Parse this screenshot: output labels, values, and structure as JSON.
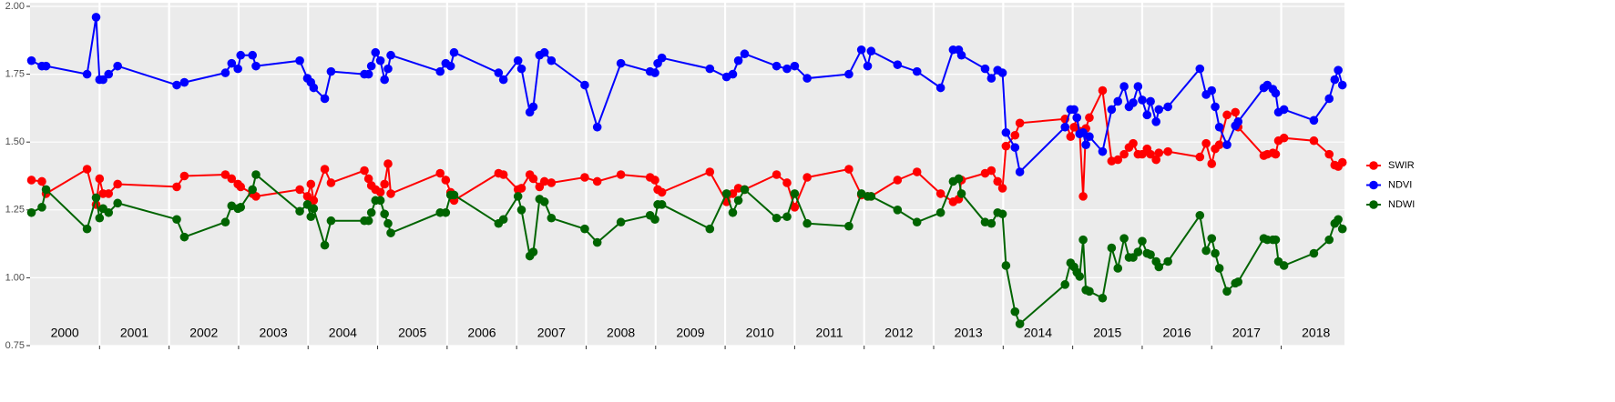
{
  "chart_data": {
    "type": "line",
    "x": [
      2000.02,
      2000.17,
      2000.23,
      2000.82,
      2000.95,
      2001.0,
      2001.05,
      2001.13,
      2001.26,
      2002.11,
      2002.22,
      2002.81,
      2002.9,
      2002.99,
      2003.03,
      2003.2,
      2003.25,
      2003.88,
      2003.99,
      2004.04,
      2004.08,
      2004.24,
      2004.33,
      2004.81,
      2004.87,
      2004.91,
      2004.97,
      2005.04,
      2005.1,
      2005.15,
      2005.19,
      2005.9,
      2005.98,
      2006.05,
      2006.1,
      2006.74,
      2006.81,
      2007.02,
      2007.07,
      2007.19,
      2007.24,
      2007.33,
      2007.4,
      2007.5,
      2007.98,
      2008.16,
      2008.5,
      2008.92,
      2008.99,
      2009.03,
      2009.09,
      2009.78,
      2010.02,
      2010.11,
      2010.19,
      2010.28,
      2010.74,
      2010.89,
      2011.0,
      2011.18,
      2011.78,
      2011.96,
      2012.05,
      2012.1,
      2012.48,
      2012.76,
      2013.1,
      2013.28,
      2013.36,
      2013.4,
      2013.74,
      2013.83,
      2013.92,
      2013.99,
      2014.04,
      2014.17,
      2014.24,
      2014.89,
      2014.97,
      2015.02,
      2015.06,
      2015.1,
      2015.15,
      2015.19,
      2015.24,
      2015.43,
      2015.56,
      2015.65,
      2015.74,
      2015.81,
      2015.87,
      2015.94,
      2016.0,
      2016.07,
      2016.12,
      2016.2,
      2016.24,
      2016.37,
      2016.83,
      2016.92,
      2017.0,
      2017.05,
      2017.11,
      2017.22,
      2017.34,
      2017.38,
      2017.75,
      2017.8,
      2017.88,
      2017.92,
      2017.96,
      2018.04,
      2018.47,
      2018.69,
      2018.77,
      2018.82,
      2018.88
    ],
    "series": [
      {
        "name": "SWIR",
        "color": "#ff0000",
        "values": [
          1.36,
          1.355,
          1.31,
          1.4,
          1.27,
          1.365,
          1.31,
          1.31,
          1.345,
          1.335,
          1.375,
          1.38,
          1.365,
          1.345,
          1.335,
          1.31,
          1.3,
          1.325,
          1.3,
          1.345,
          1.285,
          1.4,
          1.35,
          1.395,
          1.365,
          1.34,
          1.325,
          1.315,
          1.345,
          1.42,
          1.31,
          1.385,
          1.36,
          1.315,
          1.285,
          1.385,
          1.38,
          1.325,
          1.33,
          1.38,
          1.365,
          1.335,
          1.355,
          1.35,
          1.37,
          1.355,
          1.38,
          1.37,
          1.36,
          1.325,
          1.315,
          1.39,
          1.28,
          1.31,
          1.33,
          1.325,
          1.38,
          1.35,
          1.26,
          1.37,
          1.4,
          1.305,
          1.3,
          1.3,
          1.36,
          1.39,
          1.31,
          1.28,
          1.29,
          1.36,
          1.385,
          1.395,
          1.355,
          1.33,
          1.485,
          1.525,
          1.57,
          1.585,
          1.52,
          1.555,
          1.59,
          1.54,
          1.3,
          1.55,
          1.59,
          1.69,
          1.43,
          1.435,
          1.455,
          1.48,
          1.495,
          1.455,
          1.455,
          1.475,
          1.455,
          1.435,
          1.46,
          1.465,
          1.445,
          1.495,
          1.42,
          1.475,
          1.49,
          1.6,
          1.61,
          1.555,
          1.45,
          1.455,
          1.46,
          1.455,
          1.505,
          1.515,
          1.505,
          1.455,
          1.415,
          1.41,
          1.425
        ]
      },
      {
        "name": "NDVI",
        "color": "#0000ff",
        "values": [
          1.8,
          1.78,
          1.78,
          1.75,
          1.96,
          1.73,
          1.73,
          1.75,
          1.78,
          1.71,
          1.72,
          1.755,
          1.79,
          1.77,
          1.82,
          1.82,
          1.78,
          1.8,
          1.735,
          1.72,
          1.7,
          1.66,
          1.76,
          1.75,
          1.75,
          1.78,
          1.83,
          1.8,
          1.73,
          1.77,
          1.82,
          1.76,
          1.79,
          1.78,
          1.83,
          1.755,
          1.73,
          1.8,
          1.77,
          1.61,
          1.63,
          1.82,
          1.83,
          1.8,
          1.71,
          1.555,
          1.79,
          1.76,
          1.755,
          1.79,
          1.81,
          1.77,
          1.74,
          1.75,
          1.8,
          1.825,
          1.78,
          1.77,
          1.78,
          1.735,
          1.75,
          1.84,
          1.78,
          1.835,
          1.785,
          1.76,
          1.7,
          1.84,
          1.84,
          1.82,
          1.77,
          1.735,
          1.765,
          1.755,
          1.535,
          1.48,
          1.39,
          1.555,
          1.62,
          1.62,
          1.59,
          1.53,
          1.535,
          1.49,
          1.52,
          1.465,
          1.62,
          1.65,
          1.705,
          1.63,
          1.645,
          1.705,
          1.655,
          1.6,
          1.65,
          1.575,
          1.62,
          1.63,
          1.77,
          1.675,
          1.69,
          1.63,
          1.555,
          1.49,
          1.56,
          1.575,
          1.7,
          1.71,
          1.695,
          1.68,
          1.61,
          1.62,
          1.58,
          1.66,
          1.73,
          1.765,
          1.71
        ]
      },
      {
        "name": "NDWI",
        "color": "#006400",
        "values": [
          1.24,
          1.26,
          1.325,
          1.18,
          1.295,
          1.22,
          1.255,
          1.24,
          1.275,
          1.215,
          1.15,
          1.205,
          1.265,
          1.255,
          1.26,
          1.325,
          1.38,
          1.245,
          1.27,
          1.225,
          1.255,
          1.12,
          1.21,
          1.21,
          1.21,
          1.24,
          1.285,
          1.285,
          1.235,
          1.2,
          1.165,
          1.24,
          1.24,
          1.305,
          1.305,
          1.2,
          1.215,
          1.3,
          1.25,
          1.08,
          1.095,
          1.29,
          1.28,
          1.22,
          1.18,
          1.13,
          1.205,
          1.23,
          1.215,
          1.27,
          1.27,
          1.18,
          1.31,
          1.24,
          1.285,
          1.325,
          1.22,
          1.225,
          1.31,
          1.2,
          1.19,
          1.31,
          1.3,
          1.3,
          1.25,
          1.205,
          1.24,
          1.355,
          1.365,
          1.31,
          1.205,
          1.2,
          1.24,
          1.235,
          1.045,
          0.875,
          0.83,
          0.975,
          1.055,
          1.04,
          1.02,
          1.005,
          1.14,
          0.955,
          0.95,
          0.925,
          1.11,
          1.035,
          1.145,
          1.075,
          1.075,
          1.095,
          1.135,
          1.09,
          1.085,
          1.06,
          1.04,
          1.06,
          1.23,
          1.1,
          1.145,
          1.09,
          1.035,
          0.95,
          0.98,
          0.985,
          1.145,
          1.14,
          1.14,
          1.14,
          1.06,
          1.045,
          1.09,
          1.14,
          1.2,
          1.215,
          1.18
        ]
      }
    ],
    "xlim": [
      2000,
      2018.91
    ],
    "xticks": [
      {
        "value": 2000.5,
        "label": "2000"
      },
      {
        "value": 2001.5,
        "label": "2001"
      },
      {
        "value": 2002.5,
        "label": "2002"
      },
      {
        "value": 2003.5,
        "label": "2003"
      },
      {
        "value": 2004.5,
        "label": "2004"
      },
      {
        "value": 2005.5,
        "label": "2005"
      },
      {
        "value": 2006.5,
        "label": "2006"
      },
      {
        "value": 2007.5,
        "label": "2007"
      },
      {
        "value": 2008.5,
        "label": "2008"
      },
      {
        "value": 2009.5,
        "label": "2009"
      },
      {
        "value": 2010.5,
        "label": "2010"
      },
      {
        "value": 2011.5,
        "label": "2011"
      },
      {
        "value": 2012.5,
        "label": "2012"
      },
      {
        "value": 2013.5,
        "label": "2013"
      },
      {
        "value": 2014.5,
        "label": "2014"
      },
      {
        "value": 2015.5,
        "label": "2015"
      },
      {
        "value": 2016.5,
        "label": "2016"
      },
      {
        "value": 2017.5,
        "label": "2017"
      },
      {
        "value": 2018.5,
        "label": "2018"
      }
    ],
    "year_boundaries": [
      2001,
      2002,
      2003,
      2004,
      2005,
      2006,
      2007,
      2008,
      2009,
      2010,
      2011,
      2012,
      2013,
      2014,
      2015,
      2016,
      2017,
      2018
    ],
    "ylim": [
      0.75,
      2.0
    ],
    "yticks": [
      {
        "value": 0.75,
        "label": "0.75"
      },
      {
        "value": 1,
        "label": "1.00"
      },
      {
        "value": 1.25,
        "label": "1.25"
      },
      {
        "value": 1.5,
        "label": "1.50"
      },
      {
        "value": 1.75,
        "label": "1.75"
      },
      {
        "value": 2,
        "label": "2.00"
      }
    ],
    "grid": true,
    "legend": "right"
  }
}
